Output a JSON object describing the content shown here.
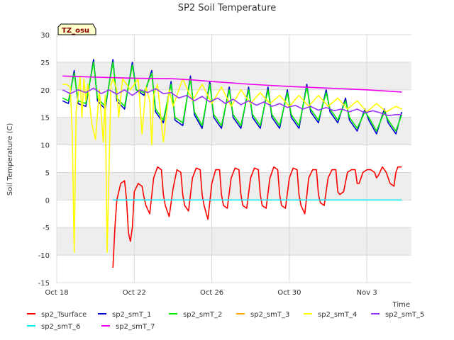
{
  "chart_data": {
    "type": "line",
    "title": "SP2 Soil Temperature",
    "ylabel": "Soil Temperature (C)",
    "xlabel": "Time",
    "badge": "TZ_osu",
    "ylim": [
      -15,
      30
    ],
    "yticks": [
      -15,
      -10,
      -5,
      0,
      5,
      10,
      15,
      20,
      25,
      30
    ],
    "xlim": [
      0,
      18.3
    ],
    "xticks": [
      {
        "label": "Oct 18",
        "day": 0
      },
      {
        "label": "Oct 22",
        "day": 4
      },
      {
        "label": "Oct 26",
        "day": 8
      },
      {
        "label": "Oct 30",
        "day": 12
      },
      {
        "label": "Nov 3",
        "day": 16
      }
    ],
    "band_color": "#eeeeee",
    "grid": true,
    "legend_placement": "bottom",
    "series": [
      {
        "name": "sp2_Tsurface",
        "color": "#ff0000",
        "x": [
          2.9,
          3.0,
          3.1,
          3.3,
          3.5,
          3.6,
          3.7,
          3.8,
          3.9,
          4.0,
          4.2,
          4.4,
          4.5,
          4.6,
          4.8,
          5.0,
          5.2,
          5.4,
          5.5,
          5.6,
          5.8,
          6.0,
          6.2,
          6.4,
          6.5,
          6.6,
          6.8,
          7.0,
          7.2,
          7.4,
          7.5,
          7.6,
          7.8,
          8.0,
          8.2,
          8.4,
          8.5,
          8.6,
          8.8,
          9.0,
          9.2,
          9.4,
          9.5,
          9.6,
          9.8,
          10.0,
          10.2,
          10.4,
          10.5,
          10.6,
          10.8,
          11.0,
          11.2,
          11.4,
          11.5,
          11.6,
          11.8,
          12.0,
          12.2,
          12.4,
          12.5,
          12.6,
          12.8,
          13.0,
          13.2,
          13.4,
          13.5,
          13.6,
          13.8,
          14.0,
          14.2,
          14.4,
          14.5,
          14.6,
          14.8,
          15.0,
          15.2,
          15.4,
          15.5,
          15.6,
          15.8,
          16.0,
          16.2,
          16.4,
          16.5,
          16.6,
          16.8,
          17.0,
          17.2,
          17.4,
          17.5,
          17.6,
          17.8
        ],
        "y": [
          -12.3,
          -5,
          0,
          3,
          3.5,
          0,
          -6,
          -7.5,
          -5,
          1.5,
          3,
          2.5,
          0.5,
          -1,
          -2.5,
          4,
          6,
          5.5,
          1,
          -1,
          -3,
          2,
          5.5,
          5,
          1,
          -1,
          -2,
          4,
          5.8,
          5.5,
          1,
          -1,
          -3.5,
          3,
          5.5,
          5.5,
          1,
          -1,
          -1.5,
          4,
          5.8,
          5.5,
          1,
          -1,
          -1.5,
          4,
          5.8,
          5.5,
          1,
          -1,
          -1.5,
          4,
          6,
          5.5,
          1,
          -1,
          -1.5,
          4,
          5.8,
          5.5,
          1,
          -1,
          -2.5,
          4,
          5.5,
          5.5,
          1,
          -0.5,
          -1,
          4,
          5.5,
          5.5,
          1.5,
          1,
          1.5,
          5,
          5.5,
          5.5,
          3,
          3,
          5,
          5.5,
          5.5,
          5,
          4,
          4.5,
          6,
          5,
          3,
          2.5,
          5,
          6,
          6
        ]
      },
      {
        "name": "sp2_smT_1",
        "color": "#0000cc",
        "x": [
          0.3,
          0.6,
          0.9,
          1.1,
          1.5,
          1.9,
          2.1,
          2.5,
          2.9,
          3.1,
          3.5,
          3.9,
          4.1,
          4.5,
          4.9,
          5.1,
          5.5,
          5.9,
          6.1,
          6.5,
          6.9,
          7.1,
          7.5,
          7.9,
          8.1,
          8.5,
          8.9,
          9.1,
          9.5,
          9.9,
          10.1,
          10.5,
          10.9,
          11.1,
          11.5,
          11.9,
          12.1,
          12.5,
          12.9,
          13.1,
          13.5,
          13.9,
          14.1,
          14.5,
          14.9,
          15.1,
          15.5,
          15.9,
          16.1,
          16.5,
          16.9,
          17.1,
          17.5,
          17.8
        ],
        "y": [
          18,
          17.5,
          23.5,
          17.5,
          17,
          25.5,
          18,
          16.5,
          25.5,
          18,
          16.5,
          25,
          20,
          19,
          23.5,
          16,
          14,
          21.5,
          14.5,
          13.5,
          22.5,
          15.5,
          13,
          21.5,
          15,
          13,
          20.5,
          15,
          13,
          20.5,
          15,
          13,
          20.5,
          15,
          13,
          20,
          15,
          13,
          21,
          16,
          14,
          20,
          16,
          14,
          18.5,
          14.5,
          12.5,
          16.5,
          14.5,
          12,
          16.5,
          14,
          12,
          16
        ]
      },
      {
        "name": "sp2_smT_2",
        "color": "#00ee00",
        "x": [
          0.3,
          0.6,
          0.9,
          1.1,
          1.5,
          1.9,
          2.1,
          2.5,
          2.9,
          3.1,
          3.5,
          3.9,
          4.1,
          4.5,
          4.9,
          5.1,
          5.5,
          5.9,
          6.1,
          6.5,
          6.9,
          7.1,
          7.5,
          7.9,
          8.1,
          8.5,
          8.9,
          9.1,
          9.5,
          9.9,
          10.1,
          10.5,
          10.9,
          11.1,
          11.5,
          11.9,
          12.1,
          12.5,
          12.9,
          13.1,
          13.5,
          13.9,
          14.1,
          14.5,
          14.9,
          15.1,
          15.5,
          15.9,
          16.1,
          16.5,
          16.9,
          17.1,
          17.5,
          17.8
        ],
        "y": [
          18.5,
          18,
          23,
          18,
          17.5,
          25,
          18.5,
          17,
          25,
          18.5,
          17,
          24.5,
          20,
          19.5,
          23,
          16.5,
          14.5,
          21,
          15,
          14,
          22,
          16,
          13.5,
          21,
          15.5,
          13.5,
          20,
          15.5,
          13.5,
          20,
          15.5,
          13.5,
          20,
          15.5,
          13.5,
          19.5,
          15.5,
          13.5,
          20.5,
          16.5,
          14.5,
          19.5,
          16.5,
          14.5,
          18,
          15,
          13,
          16,
          15,
          12.5,
          16,
          14.5,
          12.5,
          15.5
        ]
      },
      {
        "name": "sp2_smT_3",
        "color": "#ffa500",
        "x": [],
        "y": []
      },
      {
        "name": "sp2_smT_4",
        "color": "#ffff00",
        "x": [
          0.3,
          0.5,
          0.7,
          0.8,
          0.9,
          1.0,
          1.1,
          1.2,
          1.3,
          1.4,
          1.5,
          1.6,
          1.8,
          2.0,
          2.2,
          2.4,
          2.5,
          2.6,
          2.8,
          2.9,
          3.0,
          3.1,
          3.2,
          3.4,
          3.6,
          3.8,
          4.0,
          4.2,
          4.4,
          4.6,
          4.8,
          4.9,
          5.0,
          5.2,
          5.5,
          5.8,
          6.0,
          6.5,
          7.0,
          7.5,
          8.0,
          8.5,
          9.0,
          9.5,
          10.0,
          10.5,
          11.0,
          11.5,
          12.0,
          12.5,
          13.0,
          13.5,
          14.0,
          14.5,
          15.0,
          15.5,
          16.0,
          16.5,
          17.0,
          17.5,
          17.8
        ],
        "y": [
          21,
          21,
          20.5,
          12,
          -9.5,
          16,
          19,
          22.5,
          15,
          22,
          18,
          21,
          14,
          11,
          20,
          10.5,
          19,
          -9.5,
          21,
          22,
          21,
          20,
          15,
          22,
          21,
          20,
          21,
          22,
          12,
          20.5,
          18,
          10,
          19,
          21,
          10.5,
          20,
          17,
          22,
          18,
          21,
          17.5,
          20.5,
          17,
          20,
          17.5,
          19.5,
          17.5,
          19,
          17,
          19,
          17,
          19,
          17,
          18.5,
          16.5,
          18,
          16,
          17.5,
          16,
          17,
          16.5
        ]
      },
      {
        "name": "sp2_smT_5",
        "color": "#9933ff",
        "x": [
          0.3,
          0.7,
          1.1,
          1.5,
          1.9,
          2.3,
          2.7,
          3.1,
          3.5,
          3.9,
          4.3,
          4.7,
          5.1,
          5.5,
          5.9,
          6.3,
          6.7,
          7.1,
          7.5,
          7.9,
          8.3,
          8.7,
          9.1,
          9.5,
          9.9,
          10.3,
          10.7,
          11.1,
          11.5,
          11.9,
          12.3,
          12.7,
          13.1,
          13.5,
          13.9,
          14.3,
          14.7,
          15.1,
          15.5,
          15.9,
          16.3,
          16.7,
          17.1,
          17.5,
          17.8
        ],
        "y": [
          20,
          19.3,
          20,
          19.5,
          20.3,
          19.3,
          20,
          19.2,
          20,
          19,
          20,
          19.5,
          20.2,
          19.3,
          19.5,
          18.5,
          19,
          18,
          18.8,
          17.8,
          18.5,
          17.5,
          18.3,
          17.3,
          18,
          17.2,
          17.8,
          17,
          17.5,
          16.8,
          17.2,
          16.5,
          17,
          16.3,
          16.8,
          16.2,
          16.5,
          16,
          16.5,
          15.8,
          16.2,
          15.8,
          15.3,
          15.5,
          15.5
        ]
      },
      {
        "name": "sp2_smT_6",
        "color": "#00eeee",
        "x": [
          2.9,
          17.8
        ],
        "y": [
          0,
          0
        ]
      },
      {
        "name": "sp2_smT_7",
        "color": "#ee00ee",
        "x": [
          0.3,
          2.0,
          4.0,
          6.0,
          7.0,
          8.0,
          10.0,
          12.0,
          14.0,
          16.0,
          17.8
        ],
        "y": [
          22.5,
          22.3,
          22.1,
          22,
          21.8,
          21.5,
          21,
          20.6,
          20.3,
          20,
          19.6
        ]
      }
    ]
  }
}
